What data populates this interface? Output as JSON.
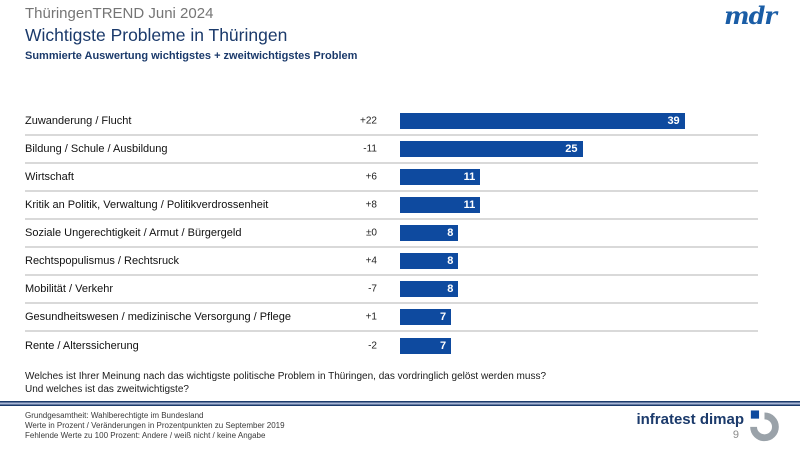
{
  "header": {
    "kicker": "ThüringenTREND Juni 2024",
    "title": "Wichtigste Probleme in Thüringen",
    "subtitle": "Summierte Auswertung wichtigstes + zweitwichtigstes Problem"
  },
  "brand": {
    "mdr": "mdr",
    "infratest": "infratest dimap",
    "page_number": "9"
  },
  "chart_data": {
    "type": "bar",
    "orientation": "horizontal",
    "title": "Wichtigste Probleme in Thüringen",
    "subtitle": "Summierte Auswertung wichtigstes + zweitwichtigstes Problem",
    "categories": [
      "Zuwanderung / Flucht",
      "Bildung / Schule / Ausbildung",
      "Wirtschaft",
      "Kritik an Politik, Verwaltung / Politikverdrossenheit",
      "Soziale Ungerechtigkeit / Armut / Bürgergeld",
      "Rechtspopulismus / Rechtsruck",
      "Mobilität / Verkehr",
      "Gesundheitswesen / medizinische Versorgung / Pflege",
      "Rente / Alterssicherung"
    ],
    "values": [
      39,
      25,
      11,
      11,
      8,
      8,
      8,
      7,
      7
    ],
    "changes": [
      "+22",
      "-11",
      "+6",
      "+8",
      "±0",
      "+4",
      "-7",
      "+1",
      "-2"
    ],
    "value_unit": "Prozent",
    "change_unit": "Prozentpunkte zu September 2019",
    "xlim": [
      0,
      49
    ],
    "grid": false,
    "legend": false,
    "bar_color": "#0e4a9f",
    "value_label_color": "#ffffff"
  },
  "question": {
    "line1": "Welches ist Ihrer Meinung nach das wichtigste politische Problem in Thüringen, das vordringlich gelöst werden muss?",
    "line2": "Und welches ist das zweitwichtigste?"
  },
  "footnotes": [
    "Grundgesamtheit: Wahlberechtigte im Bundesland",
    "Werte in Prozent / Veränderungen  in Prozentpunkten zu September 2019",
    "Fehlende Werte zu 100 Prozent: Andere / weiß nicht / keine Angabe"
  ],
  "colors": {
    "bar_blue": "#0e4a9f",
    "navy_text": "#1b3a6b",
    "mdr_blue": "#1a5da6",
    "separator_gray": "#d9d9d9",
    "kicker_gray": "#757575",
    "logo_gray": "#9aa2a9",
    "rule_light_blue": "#a9b7d6"
  }
}
